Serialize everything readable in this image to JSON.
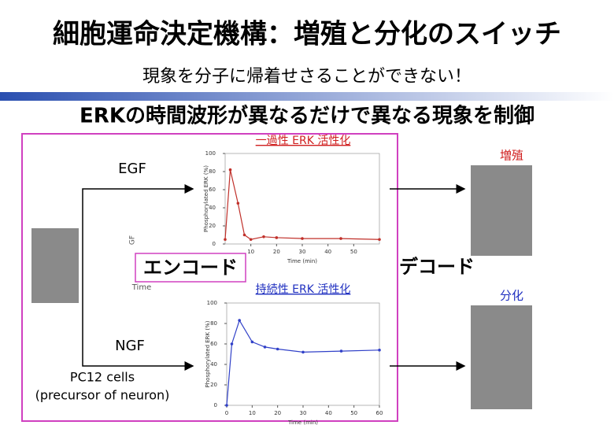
{
  "title": "細胞運命決定機構：増殖と分化のスイッチ",
  "subtitle": "現象を分子に帰着せさることができない！",
  "heading": "ERKの時間波形が異なるだけで異なる現象を制御",
  "labels": {
    "transient": "一過性 ERK 活性化",
    "sustained": "持続性 ERK 活性化",
    "egf": "EGF",
    "ngf": "NGF",
    "cells": "PC12 cells",
    "cells_note": "(precursor of neuron)",
    "encode": "エンコード",
    "decode": "デコード",
    "proliferation": "増殖",
    "differentiation": "分化",
    "time_fragment": "Time",
    "egf_fragment": "GF"
  },
  "chart_data": [
    {
      "type": "line",
      "x_label": "Time (min)",
      "y_label": "Phosphorylated ERK (%)",
      "x": [
        0,
        2,
        5,
        7.5,
        10,
        15,
        20,
        30,
        45,
        60
      ],
      "series": [
        {
          "color": "#c0302a",
          "values": [
            5,
            82,
            45,
            10,
            5,
            8,
            7,
            6,
            6,
            5
          ]
        }
      ],
      "xlim": [
        0,
        60
      ],
      "ylim": [
        0,
        100
      ],
      "xticks": [
        10,
        20,
        30,
        40,
        50
      ],
      "yticks": [
        0,
        20,
        40,
        60,
        80,
        100
      ]
    },
    {
      "type": "line",
      "x_label": "Time (min)",
      "y_label": "Phosphorylated ERK (%)",
      "x": [
        0,
        2,
        5,
        10,
        15,
        20,
        30,
        45,
        60
      ],
      "series": [
        {
          "color": "#3040c8",
          "values": [
            0,
            60,
            83,
            62,
            57,
            55,
            52,
            53,
            54
          ]
        }
      ],
      "xlim": [
        0,
        60
      ],
      "ylim": [
        0,
        100
      ],
      "xticks": [
        0,
        10,
        20,
        30,
        40,
        50,
        60
      ],
      "yticks": [
        0,
        20,
        40,
        60,
        80,
        100
      ]
    }
  ]
}
